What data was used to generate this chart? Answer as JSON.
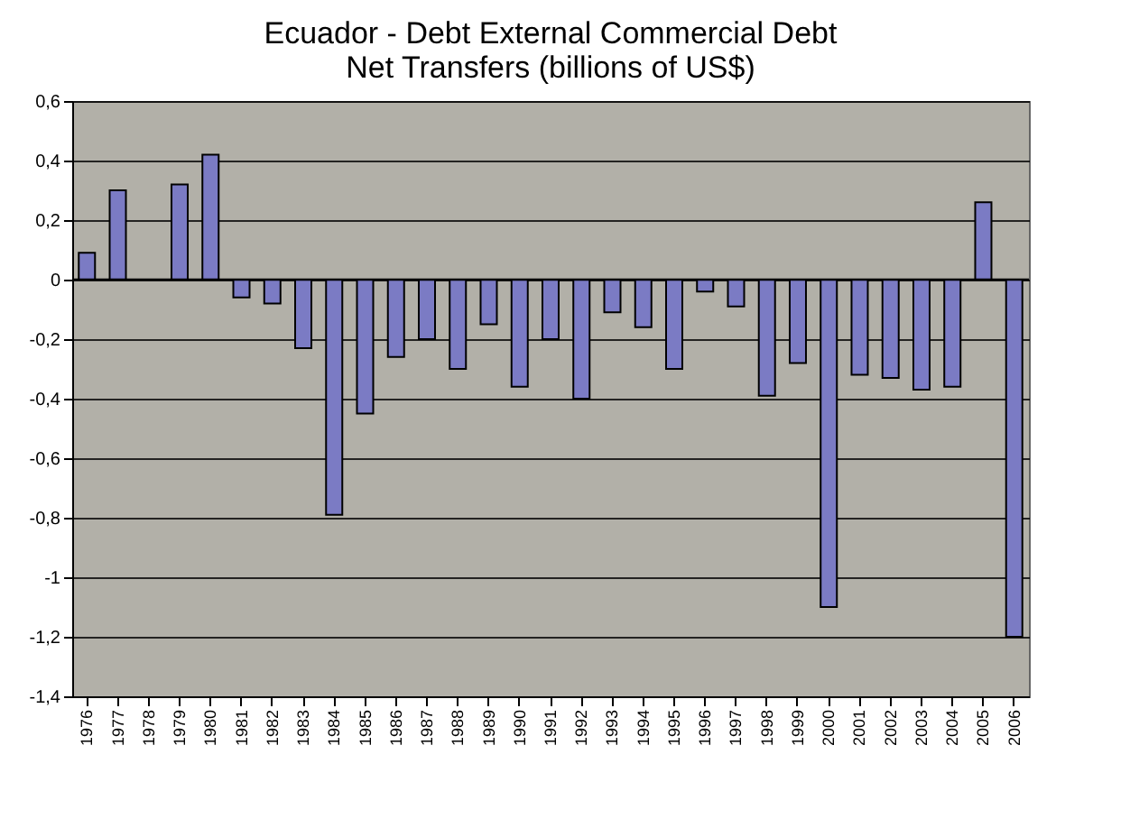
{
  "chart_data": {
    "type": "bar",
    "title": [
      "Ecuador - Debt External Commercial Debt",
      "Net Transfers (billions of US$)"
    ],
    "categories": [
      "1976",
      "1977",
      "1978",
      "1979",
      "1980",
      "1981",
      "1982",
      "1983",
      "1984",
      "1985",
      "1986",
      "1987",
      "1988",
      "1989",
      "1990",
      "1991",
      "1992",
      "1993",
      "1994",
      "1995",
      "1996",
      "1997",
      "1998",
      "1999",
      "2000",
      "2001",
      "2002",
      "2003",
      "2004",
      "2005",
      "2006"
    ],
    "values": [
      0.09,
      0.3,
      null,
      0.32,
      0.42,
      -0.06,
      -0.08,
      -0.23,
      -0.79,
      -0.45,
      -0.26,
      -0.2,
      -0.3,
      -0.15,
      -0.36,
      -0.2,
      -0.4,
      -0.11,
      -0.16,
      -0.3,
      -0.04,
      -0.09,
      -0.39,
      -0.28,
      -1.1,
      -0.32,
      -0.33,
      -0.37,
      -0.36,
      0.26,
      -1.2
    ],
    "color": "#7b7bc4",
    "ylim": [
      -1.4,
      0.6
    ],
    "yticks": [
      {
        "value": 0.6,
        "label": "0,6"
      },
      {
        "value": 0.4,
        "label": "0,4"
      },
      {
        "value": 0.2,
        "label": "0,2"
      },
      0,
      {
        "value": -0.2,
        "label": "-0,2"
      },
      {
        "value": -0.4,
        "label": "-0,4"
      },
      {
        "value": -0.6,
        "label": "-0,6"
      },
      {
        "value": -0.8,
        "label": "-0,8"
      },
      -1,
      {
        "value": -1.2,
        "label": "-1,2"
      },
      {
        "value": -1.4,
        "label": "-1,4"
      }
    ],
    "grid": "y"
  }
}
